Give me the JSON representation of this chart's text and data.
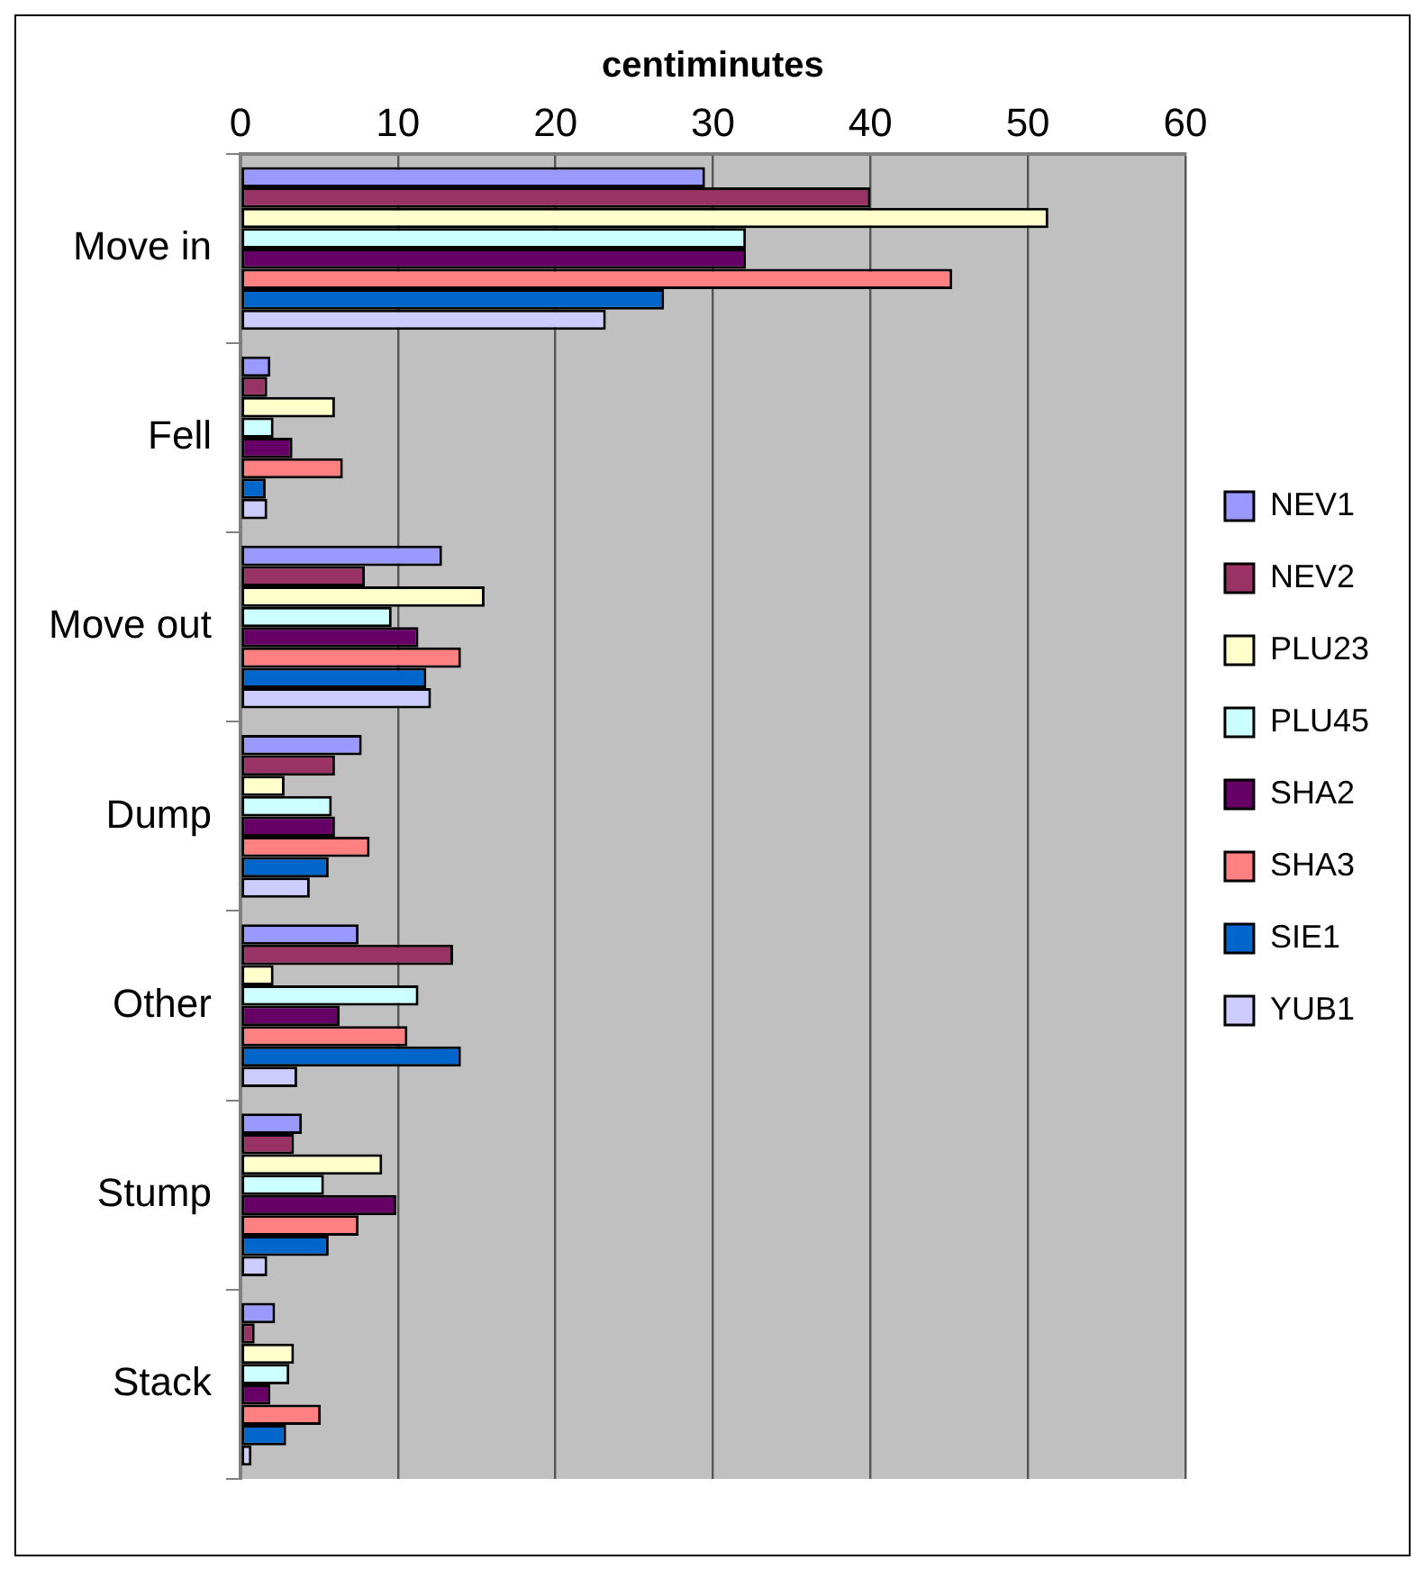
{
  "chart_data": {
    "type": "bar",
    "orientation": "horizontal",
    "xlabel": "centiminutes",
    "categories": [
      "Move in",
      "Fell",
      "Move out",
      "Dump",
      "Other",
      "Stump",
      "Stack"
    ],
    "series": [
      {
        "name": "NEV1",
        "color": "#9999ff",
        "values": [
          29.5,
          1.9,
          12.8,
          7.7,
          7.5,
          3.9,
          2.2
        ]
      },
      {
        "name": "NEV2",
        "color": "#993366",
        "values": [
          40,
          1.7,
          7.9,
          6,
          13.5,
          3.4,
          0.9
        ]
      },
      {
        "name": "PLU23",
        "color": "#ffffcc",
        "values": [
          51.3,
          6,
          15.5,
          2.8,
          2.1,
          9,
          3.4
        ]
      },
      {
        "name": "PLU45",
        "color": "#ccffff",
        "values": [
          32.1,
          2.1,
          9.6,
          5.8,
          11.3,
          5.3,
          3.1
        ]
      },
      {
        "name": "SHA2",
        "color": "#660066",
        "values": [
          32.1,
          3.3,
          11.3,
          6,
          6.3,
          9.9,
          1.9
        ]
      },
      {
        "name": "SHA3",
        "color": "#ff8080",
        "values": [
          45.2,
          6.5,
          14,
          8.2,
          10.6,
          7.5,
          5.1
        ]
      },
      {
        "name": "SIE1",
        "color": "#0066cc",
        "values": [
          26.9,
          1.6,
          11.8,
          5.6,
          14,
          5.6,
          2.9
        ]
      },
      {
        "name": "YUB1",
        "color": "#ccccff",
        "values": [
          23.2,
          1.7,
          12.1,
          4.4,
          3.6,
          1.7,
          0.7
        ]
      }
    ],
    "xlim": [
      0,
      60
    ],
    "xticks": [
      0,
      10,
      20,
      30,
      40,
      50,
      60
    ],
    "grid": "x",
    "legend": "right"
  }
}
